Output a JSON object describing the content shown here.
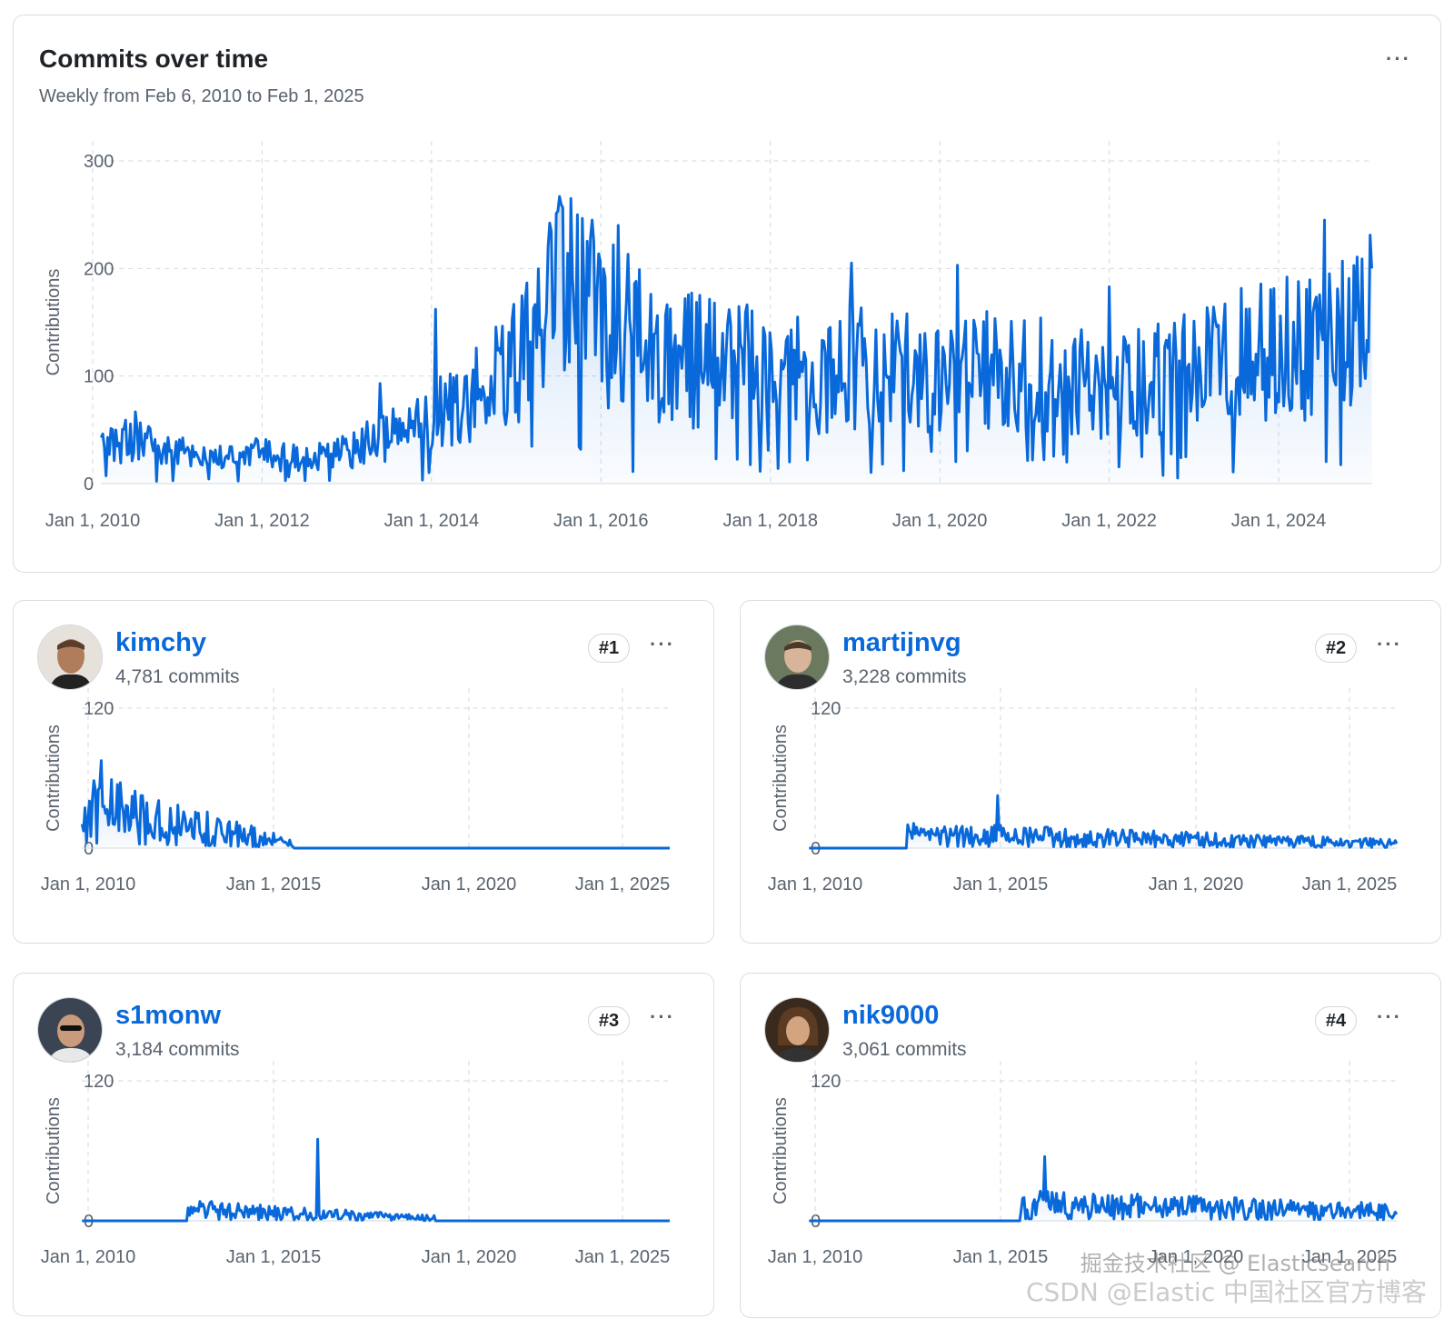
{
  "main": {
    "title": "Commits over time",
    "subtitle": "Weekly from Feb 6, 2010 to Feb 1, 2025",
    "more_label": "···"
  },
  "chart_data": [
    {
      "type": "area",
      "title": "Commits over time",
      "subtitle": "Weekly from Feb 6, 2010 to Feb 1, 2025",
      "ylabel": "Contributions",
      "ylim": [
        0,
        300
      ],
      "yticks": [
        "0",
        "100",
        "200",
        "300"
      ],
      "xticks": [
        "Jan 1, 2010",
        "Jan 1, 2012",
        "Jan 1, 2014",
        "Jan 1, 2016",
        "Jan 1, 2018",
        "Jan 1, 2020",
        "Jan 1, 2022",
        "Jan 1, 2024"
      ],
      "x_start_year": 2010.1,
      "x_end_year": 2025.1,
      "grid": true,
      "color": "#0969da",
      "keypoints_year_value": [
        [
          2010.1,
          30
        ],
        [
          2010.5,
          45
        ],
        [
          2011.0,
          30
        ],
        [
          2011.5,
          25
        ],
        [
          2012.0,
          28
        ],
        [
          2012.5,
          22
        ],
        [
          2013.0,
          30
        ],
        [
          2013.5,
          45
        ],
        [
          2014.0,
          60
        ],
        [
          2014.5,
          80
        ],
        [
          2015.0,
          110
        ],
        [
          2015.5,
          175
        ],
        [
          2016.0,
          160
        ],
        [
          2016.5,
          130
        ],
        [
          2017.0,
          115
        ],
        [
          2017.5,
          110
        ],
        [
          2018.0,
          105
        ],
        [
          2018.5,
          100
        ],
        [
          2019.0,
          110
        ],
        [
          2019.5,
          105
        ],
        [
          2020.0,
          100
        ],
        [
          2020.5,
          105
        ],
        [
          2021.0,
          100
        ],
        [
          2021.5,
          100
        ],
        [
          2022.0,
          90
        ],
        [
          2022.5,
          95
        ],
        [
          2023.0,
          105
        ],
        [
          2023.5,
          120
        ],
        [
          2024.0,
          120
        ],
        [
          2024.5,
          125
        ],
        [
          2025.1,
          150
        ]
      ],
      "peaks_year_value": [
        [
          2015.65,
          265
        ],
        [
          2015.9,
          245
        ],
        [
          2016.2,
          240
        ],
        [
          2014.05,
          162
        ],
        [
          2018.95,
          205
        ],
        [
          2020.2,
          203
        ],
        [
          2022.0,
          183
        ],
        [
          2024.55,
          245
        ],
        [
          2024.1,
          192
        ],
        [
          2013.4,
          93
        ]
      ]
    },
    {
      "type": "area",
      "ylabel": "Contributions",
      "ylim": [
        0,
        120
      ],
      "yticks": [
        "0",
        "120"
      ],
      "xticks": [
        "Jan 1, 2010",
        "Jan 1, 2015",
        "Jan 1, 2020",
        "Jan 1, 2025"
      ],
      "x_start_year": 2010.1,
      "x_end_year": 2025.1,
      "color": "#0969da",
      "active_from": 2010.1,
      "active_to": 2015.5,
      "mean_start": 45,
      "mean_end": 5,
      "peak": 75,
      "peak_year": 2010.6
    },
    {
      "type": "area",
      "ylabel": "Contributions",
      "ylim": [
        0,
        120
      ],
      "yticks": [
        "0",
        "120"
      ],
      "xticks": [
        "Jan 1, 2010",
        "Jan 1, 2015",
        "Jan 1, 2020",
        "Jan 1, 2025"
      ],
      "x_start_year": 2010.1,
      "x_end_year": 2025.1,
      "color": "#0969da",
      "active_from": 2012.6,
      "active_to": 2025.1,
      "mean_start": 15,
      "mean_end": 5,
      "peak": 45,
      "peak_year": 2014.9
    },
    {
      "type": "area",
      "ylabel": "Contributions",
      "ylim": [
        0,
        120
      ],
      "yticks": [
        "0",
        "120"
      ],
      "xticks": [
        "Jan 1, 2010",
        "Jan 1, 2015",
        "Jan 1, 2020",
        "Jan 1, 2025"
      ],
      "x_start_year": 2010.1,
      "x_end_year": 2025.1,
      "color": "#0969da",
      "active_from": 2012.8,
      "active_to": 2019.1,
      "mean_start": 12,
      "mean_end": 3,
      "peak": 70,
      "peak_year": 2016.1
    },
    {
      "type": "area",
      "ylabel": "Contributions",
      "ylim": [
        0,
        120
      ],
      "yticks": [
        "0",
        "120"
      ],
      "xticks": [
        "Jan 1, 2010",
        "Jan 1, 2015",
        "Jan 1, 2020",
        "Jan 1, 2025"
      ],
      "x_start_year": 2010.1,
      "x_end_year": 2025.1,
      "color": "#0969da",
      "active_from": 2015.5,
      "active_to": 2025.1,
      "mean_start": 18,
      "mean_end": 10,
      "peak": 55,
      "peak_year": 2016.1
    }
  ],
  "contributors": [
    {
      "username": "kimchy",
      "commits": "4,781 commits",
      "rank": "#1",
      "more_label": "···"
    },
    {
      "username": "martijnvg",
      "commits": "3,228 commits",
      "rank": "#2",
      "more_label": "···"
    },
    {
      "username": "s1monw",
      "commits": "3,184 commits",
      "rank": "#3",
      "more_label": "···"
    },
    {
      "username": "nik9000",
      "commits": "3,061 commits",
      "rank": "#4",
      "more_label": "···"
    }
  ],
  "watermark": {
    "line1": "掘金技术社区 @ Elasticsearch",
    "line2": "CSDN @Elastic 中国社区官方博客"
  }
}
